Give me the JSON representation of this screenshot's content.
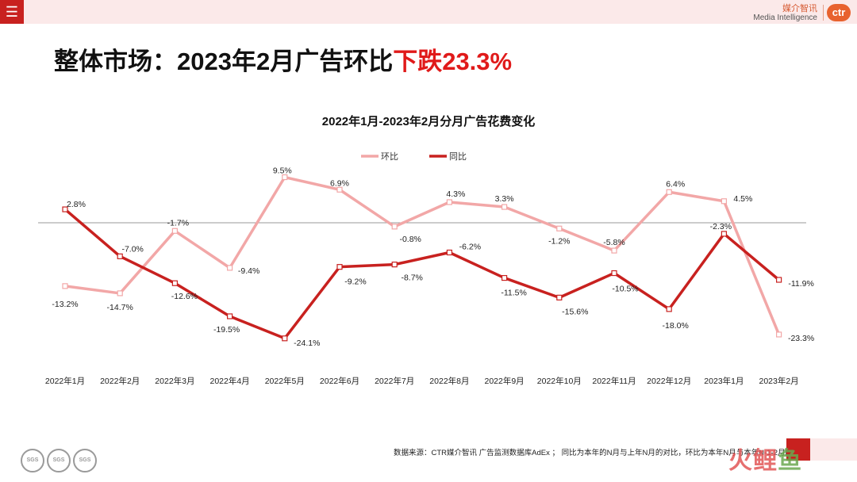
{
  "header": {
    "menu_icon": "hamburger-icon",
    "brand_cn": "媒介智讯",
    "brand_en": "Media Intelligence",
    "brand_logo": "ctr"
  },
  "headline": {
    "prefix": "整体市场：2023年2月广告环比",
    "highlight": "下跌23.3%",
    "highlight_color": "#e01a1a"
  },
  "chart_data": {
    "type": "line",
    "title": "2022年1月-2023年2月分月广告花费变化",
    "categories": [
      "2022年1月",
      "2022年2月",
      "2022年3月",
      "2022年4月",
      "2022年5月",
      "2022年6月",
      "2022年7月",
      "2022年8月",
      "2022年9月",
      "2022年10月",
      "2022年11月",
      "2022年12月",
      "2023年1月",
      "2023年2月"
    ],
    "series": [
      {
        "name": "环比",
        "color": "#f2a7a7",
        "values": [
          -13.2,
          -14.7,
          -1.7,
          -9.4,
          9.5,
          6.9,
          -0.8,
          4.3,
          3.3,
          -1.2,
          -5.8,
          6.4,
          4.5,
          -23.3
        ],
        "labels": [
          "-13.2%",
          "-14.7%",
          "-1.7%",
          "-9.4%",
          "9.5%",
          "6.9%",
          "-0.8%",
          "4.3%",
          "3.3%",
          "-1.2%",
          "-5.8%",
          "6.4%",
          "4.5%",
          "-23.3%"
        ]
      },
      {
        "name": "同比",
        "color": "#c8211f",
        "values": [
          2.8,
          -7.0,
          -12.6,
          -19.5,
          -24.1,
          -9.2,
          -8.7,
          -6.2,
          -11.5,
          -15.6,
          -10.5,
          -18.0,
          -2.3,
          -11.9
        ],
        "labels": [
          "2.8%",
          "-7.0%",
          "-12.6%",
          "-19.5%",
          "-24.1%",
          "-9.2%",
          "-8.7%",
          "-6.2%",
          "-11.5%",
          "-15.6%",
          "-10.5%",
          "-18.0%",
          "-2.3%",
          "-11.9%"
        ]
      }
    ],
    "legend_position": "top-center",
    "grid": false
  },
  "footer": {
    "source": "数据来源：CTR媒介智讯 广告监测数据库AdEx ；  同比为本年的N月与上年N月的对比，环比为本年N月与本年N-1-2月的对比",
    "certification_badges": [
      "SGS",
      "SGS",
      "SGS"
    ],
    "watermark_a": "火",
    "watermark_b": "鲤",
    "watermark_c": "鱼"
  }
}
